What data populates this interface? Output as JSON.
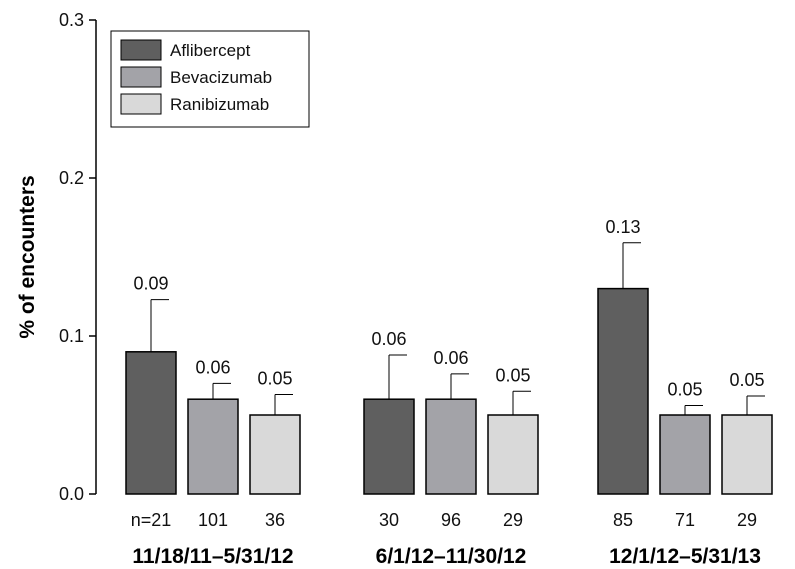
{
  "chart_data": {
    "type": "bar",
    "title": "",
    "xlabel": "",
    "ylabel": "% of encounters",
    "ylim": [
      0,
      0.3
    ],
    "yticks": [
      "0.0",
      "0.1",
      "0.2",
      "0.3"
    ],
    "grid": false,
    "legend_position": "top-left",
    "groups": [
      {
        "label": "11/18/11–5/31/12",
        "bars": [
          {
            "series": "Aflibercept",
            "value": 0.09,
            "label": "0.09",
            "error": 0.123,
            "n": "n=21"
          },
          {
            "series": "Bevacizumab",
            "value": 0.06,
            "label": "0.06",
            "error": 0.07,
            "n": "101"
          },
          {
            "series": "Ranibizumab",
            "value": 0.05,
            "label": "0.05",
            "error": 0.063,
            "n": "36"
          }
        ]
      },
      {
        "label": "6/1/12–11/30/12",
        "bars": [
          {
            "series": "Aflibercept",
            "value": 0.06,
            "label": "0.06",
            "error": 0.088,
            "n": "30"
          },
          {
            "series": "Bevacizumab",
            "value": 0.06,
            "label": "0.06",
            "error": 0.076,
            "n": "96"
          },
          {
            "series": "Ranibizumab",
            "value": 0.05,
            "label": "0.05",
            "error": 0.065,
            "n": "29"
          }
        ]
      },
      {
        "label": "12/1/12–5/31/13",
        "bars": [
          {
            "series": "Aflibercept",
            "value": 0.13,
            "label": "0.13",
            "error": 0.159,
            "n": "85"
          },
          {
            "series": "Bevacizumab",
            "value": 0.05,
            "label": "0.05",
            "error": 0.056,
            "n": "71"
          },
          {
            "series": "Ranibizumab",
            "value": 0.05,
            "label": "0.05",
            "error": 0.062,
            "n": "29"
          }
        ]
      }
    ],
    "series": [
      {
        "name": "Aflibercept",
        "color": "#5f5f5f"
      },
      {
        "name": "Bevacizumab",
        "color": "#a3a3a8"
      },
      {
        "name": "Ranibizumab",
        "color": "#d9d9d9"
      }
    ]
  }
}
